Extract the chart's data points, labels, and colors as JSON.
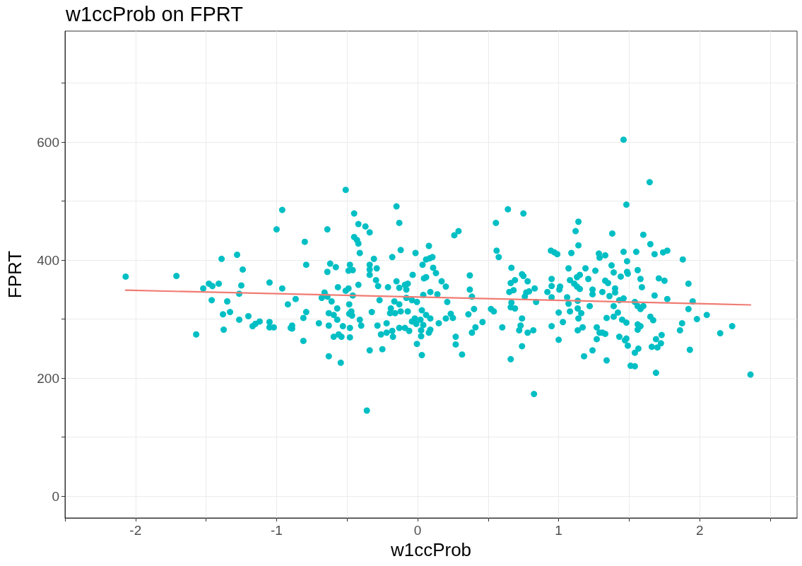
{
  "chart_data": {
    "type": "scatter",
    "title": "w1ccProb on FPRT",
    "xlabel": "w1ccProb",
    "ylabel": "FPRT",
    "xlim": [
      -2.5,
      2.69
    ],
    "ylim": [
      -37,
      788
    ],
    "xticks": [
      {
        "value": -2.5,
        "label": null
      },
      -2,
      {
        "value": -1.5,
        "label": null
      },
      -1,
      {
        "value": -0.5,
        "label": null
      },
      0,
      {
        "value": 0.5,
        "label": null
      },
      1,
      {
        "value": 1.5,
        "label": null
      },
      2,
      {
        "value": 2.5,
        "label": null
      }
    ],
    "yticks": [
      0,
      {
        "value": 100,
        "label": null
      },
      200,
      {
        "value": 300,
        "label": null
      },
      400,
      {
        "value": 500,
        "label": null
      },
      600,
      {
        "value": 700,
        "label": null
      }
    ],
    "grid": true,
    "marker": "circle",
    "series": [
      {
        "color": "#00bfc4",
        "x": [
          -2.07,
          -1.71,
          -1.57,
          -1.52,
          -1.48,
          -1.455,
          -1.41,
          -1.46,
          -1.39,
          -1.35,
          -1.38,
          -1.33,
          -1.375,
          -1.28,
          -1.24,
          -1.25,
          -1.265,
          -1.265,
          -1.2,
          -1.17,
          -1.15,
          -1.12,
          -1.05,
          -1.05,
          -1.02,
          -1.05,
          -1.0,
          -0.96,
          -0.96,
          -0.92,
          -0.9,
          -0.865,
          -0.89,
          -0.89,
          -0.81,
          -0.79,
          -0.8,
          -0.79,
          -0.81,
          -0.7,
          -0.68,
          -0.66,
          -0.64,
          -0.61,
          -0.64,
          -0.62,
          -0.58,
          -0.64,
          -0.63,
          -0.63,
          -0.595,
          -0.57,
          -0.57,
          -0.595,
          -0.56,
          -0.54,
          -0.53,
          -0.565,
          -0.63,
          -0.545,
          -0.51,
          -0.51,
          -0.49,
          -0.48,
          -0.49,
          -0.46,
          -0.485,
          -0.485,
          -0.47,
          -0.465,
          -0.48,
          -0.48,
          -0.46,
          -0.45,
          -0.42,
          -0.45,
          -0.43,
          -0.42,
          -0.41,
          -0.42,
          -0.41,
          -0.4,
          -0.37,
          -0.34,
          -0.36,
          -0.34,
          -0.34,
          -0.34,
          -0.34,
          -0.31,
          -0.29,
          -0.295,
          -0.28,
          -0.27,
          -0.325,
          -0.285,
          -0.26,
          -0.25,
          -0.22,
          -0.22,
          -0.21,
          -0.19,
          -0.195,
          -0.18,
          -0.18,
          -0.175,
          -0.165,
          -0.16,
          -0.15,
          -0.15,
          -0.13,
          -0.13,
          -0.13,
          -0.12,
          -0.12,
          -0.13,
          -0.09,
          -0.08,
          -0.07,
          -0.08,
          -0.07,
          -0.09,
          -0.06,
          -0.035,
          -0.04,
          -0.04,
          -0.015,
          -0.005,
          -0.005,
          -0.02,
          -0.01,
          0.03,
          0.02,
          0.03,
          0.025,
          0.025,
          0.04,
          0.04,
          0.035,
          0.045,
          0.06,
          0.06,
          0.08,
          0.06,
          0.085,
          0.105,
          0.11,
          0.13,
          0.09,
          0.09,
          0.08,
          0.09,
          0.14,
          0.15,
          0.17,
          0.2,
          0.2,
          0.21,
          0.235,
          0.25,
          0.26,
          0.29,
          0.27,
          0.27,
          0.315,
          0.37,
          0.37,
          0.385,
          0.4,
          0.36,
          0.41,
          0.385,
          0.46,
          0.52,
          0.54,
          0.6,
          0.555,
          0.64,
          0.56,
          0.575,
          0.665,
          0.66,
          0.69,
          0.65,
          0.68,
          0.665,
          0.66,
          0.69,
          0.66,
          0.75,
          0.74,
          0.75,
          0.78,
          0.77,
          0.76,
          0.79,
          0.83,
          0.84,
          0.74,
          0.73,
          0.72,
          0.78,
          0.82,
          0.74,
          0.825,
          0.945,
          0.97,
          0.99,
          0.92,
          0.95,
          0.95,
          0.95,
          1.01,
          1.005,
          0.95,
          1.0,
          1.03,
          1.0,
          1.06,
          1.07,
          1.08,
          1.07,
          1.09,
          1.12,
          1.14,
          1.14,
          1.08,
          1.11,
          1.13,
          1.15,
          1.13,
          1.15,
          1.135,
          1.135,
          1.14,
          1.16,
          1.135,
          1.17,
          1.18,
          1.19,
          1.21,
          1.22,
          1.24,
          1.24,
          1.24,
          1.26,
          1.27,
          1.285,
          1.29,
          1.27,
          1.29,
          1.645,
          1.48,
          1.38,
          1.6,
          1.65,
          1.33,
          1.46,
          1.55,
          1.68,
          1.74,
          1.77,
          1.88,
          1.485,
          1.375,
          1.39,
          1.44,
          1.485,
          1.49,
          1.56,
          1.58,
          1.59,
          1.71,
          1.75,
          1.92,
          1.33,
          1.35,
          1.31,
          1.36,
          1.4,
          1.4,
          1.43,
          1.46,
          1.39,
          1.54,
          1.68,
          1.77,
          1.95,
          1.56,
          1.58,
          1.6,
          1.92,
          2.05,
          1.42,
          1.34,
          1.39,
          1.45,
          1.48,
          1.65,
          1.67,
          1.98,
          1.56,
          1.58,
          1.56,
          1.31,
          1.33,
          1.43,
          1.48,
          1.47,
          1.49,
          1.73,
          1.69,
          1.725,
          1.66,
          1.7,
          1.565,
          1.54,
          1.875,
          1.86,
          1.93,
          2.145,
          2.23,
          1.34,
          1.51,
          1.54,
          1.69,
          2.36,
          1.46
        ],
        "values": [
          372,
          373,
          274,
          352,
          360,
          356,
          360,
          332,
          402,
          330,
          308,
          312,
          282,
          409,
          384,
          357,
          343,
          299,
          305,
          288,
          292,
          296,
          295,
          286,
          286,
          362,
          452,
          485,
          352,
          325,
          285,
          334,
          289,
          284,
          302,
          312,
          431,
          392,
          263,
          293,
          336,
          345,
          338,
          330,
          380,
          394,
          388,
          452,
          310,
          289,
          307,
          318,
          299,
          270,
          274,
          270,
          288,
          354,
          237,
          226,
          519,
          348,
          352,
          392,
          382,
          383,
          325,
          309,
          313,
          306,
          285,
          269,
          340,
          479,
          461,
          439,
          434,
          428,
          412,
          358,
          299,
          289,
          457,
          447,
          145,
          247,
          392,
          384,
          375,
          402,
          386,
          366,
          356,
          332,
          312,
          289,
          274,
          249,
          293,
          277,
          354,
          318,
          310,
          405,
          280,
          270,
          330,
          310,
          491,
          364,
          353,
          325,
          463,
          417,
          313,
          285,
          358,
          350,
          360,
          336,
          313,
          285,
          280,
          375,
          332,
          296,
          412,
          329,
          258,
          301,
          292,
          239,
          299,
          315,
          281,
          271,
          290,
          341,
          392,
          369,
          371,
          307,
          424,
          401,
          403,
          405,
          387,
          378,
          346,
          301,
          277,
          282,
          342,
          293,
          364,
          301,
          355,
          329,
          309,
          302,
          442,
          449,
          270,
          257,
          240,
          374,
          350,
          338,
          317,
          308,
          286,
          277,
          295,
          317,
          313,
          286,
          463,
          486,
          416,
          405,
          387,
          361,
          366,
          346,
          349,
          328,
          320,
          318,
          232,
          479,
          376,
          373,
          364,
          345,
          338,
          347,
          352,
          329,
          301,
          289,
          281,
          277,
          281,
          254,
          173,
          416,
          413,
          410,
          346,
          368,
          356,
          337,
          355,
          350,
          288,
          311,
          295,
          265,
          337,
          326,
          313,
          386,
          412,
          449,
          465,
          425,
          366,
          360,
          355,
          351,
          371,
          375,
          331,
          318,
          301,
          310,
          281,
          286,
          237,
          386,
          368,
          322,
          350,
          342,
          247,
          382,
          266,
          411,
          404,
          286,
          277,
          532,
          494,
          445,
          443,
          427,
          408,
          414,
          414,
          410,
          413,
          416,
          401,
          398,
          391,
          379,
          372,
          380,
          377,
          383,
          368,
          354,
          369,
          365,
          360,
          365,
          361,
          346,
          339,
          352,
          345,
          332,
          335,
          322,
          329,
          340,
          334,
          330,
          322,
          317,
          322,
          317,
          307,
          311,
          302,
          304,
          299,
          294,
          304,
          298,
          300,
          291,
          288,
          282,
          277,
          275,
          270,
          267,
          264,
          255,
          273,
          266,
          259,
          253,
          252,
          250,
          243,
          293,
          281,
          248,
          276,
          288,
          230,
          221,
          220,
          209,
          206,
          604
        ]
      },
      {
        "type": "line",
        "color": "#f07c74",
        "marker": "none",
        "x": [
          -2.07,
          2.36
        ],
        "values": [
          349,
          324
        ]
      }
    ]
  }
}
